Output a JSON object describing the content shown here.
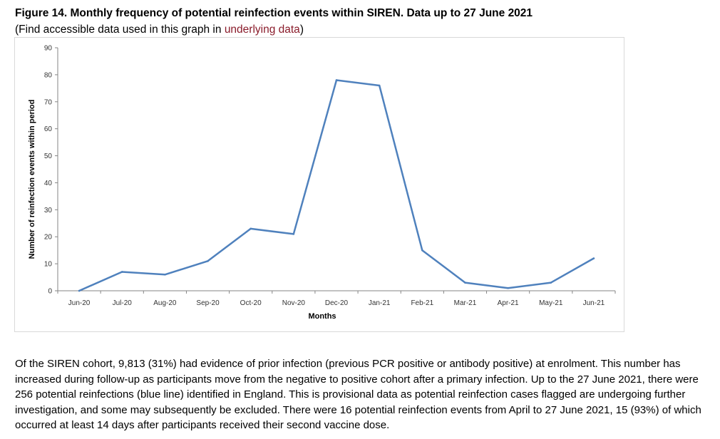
{
  "figure": {
    "title": "Figure 14. Monthly frequency of potential reinfection events within SIREN. Data up to 27 June 2021",
    "subtitle_prefix": "(Find accessible data used in this graph in ",
    "subtitle_link": "underlying data",
    "subtitle_suffix": ")"
  },
  "chart_data": {
    "type": "line",
    "title": "",
    "xlabel": "Months",
    "ylabel": "Number of reinfection events within period",
    "categories": [
      "Jun-20",
      "Jul-20",
      "Aug-20",
      "Sep-20",
      "Oct-20",
      "Nov-20",
      "Dec-20",
      "Jan-21",
      "Feb-21",
      "Mar-21",
      "Apr-21",
      "May-21",
      "Jun-21"
    ],
    "series": [
      {
        "values": [
          0,
          7,
          6,
          11,
          23,
          21,
          78,
          76,
          15,
          3,
          1,
          3,
          12
        ],
        "color": "#4f81bd"
      }
    ],
    "ylim": [
      0,
      90
    ],
    "yticks": [
      0,
      10,
      20,
      30,
      40,
      50,
      60,
      70,
      80,
      90
    ],
    "grid": false,
    "legend": "none"
  },
  "body": {
    "paragraph": "Of the SIREN cohort, 9,813 (31%) had evidence of prior infection (previous PCR positive or antibody positive) at enrolment. This number has increased during follow-up as participants move from the negative to positive cohort after a primary infection. Up to the 27 June 2021, there were 256 potential reinfections (blue line) identified in England. This is provisional data as potential reinfection cases flagged are undergoing further investigation, and some may subsequently be excluded. There were 16 potential reinfection events from April to 27 June 2021, 15 (93%) of which occurred at least 14 days after participants received their second vaccine dose."
  }
}
